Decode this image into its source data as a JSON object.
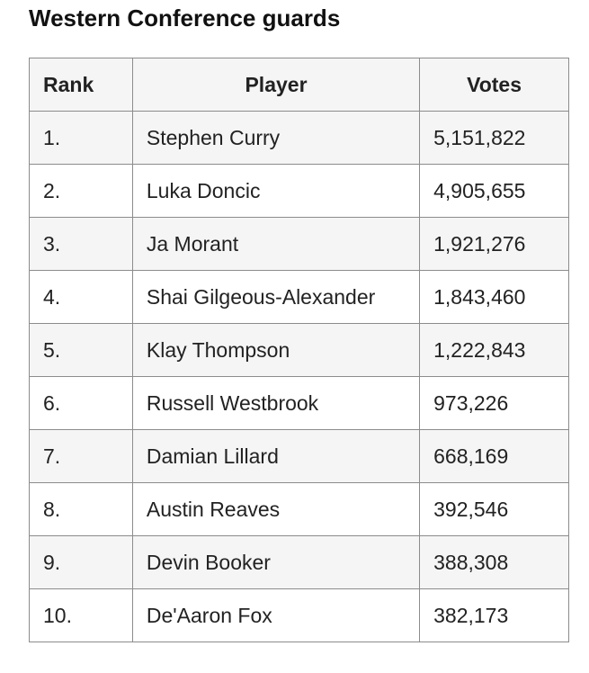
{
  "title": "Western Conference guards",
  "table": {
    "headers": {
      "rank": "Rank",
      "player": "Player",
      "votes": "Votes"
    },
    "rows": [
      {
        "rank": "1.",
        "player": "Stephen Curry",
        "votes": "5,151,822"
      },
      {
        "rank": "2.",
        "player": "Luka Doncic",
        "votes": "4,905,655"
      },
      {
        "rank": "3.",
        "player": "Ja Morant",
        "votes": "1,921,276"
      },
      {
        "rank": "4.",
        "player": "Shai Gilgeous-Alexander",
        "votes": "1,843,460"
      },
      {
        "rank": "5.",
        "player": "Klay Thompson",
        "votes": "1,222,843"
      },
      {
        "rank": "6.",
        "player": "Russell Westbrook",
        "votes": "973,226"
      },
      {
        "rank": "7.",
        "player": "Damian Lillard",
        "votes": "668,169"
      },
      {
        "rank": "8.",
        "player": "Austin Reaves",
        "votes": "392,546"
      },
      {
        "rank": "9.",
        "player": "Devin Booker",
        "votes": "388,308"
      },
      {
        "rank": "10.",
        "player": "De'Aaron Fox",
        "votes": "382,173"
      }
    ]
  }
}
